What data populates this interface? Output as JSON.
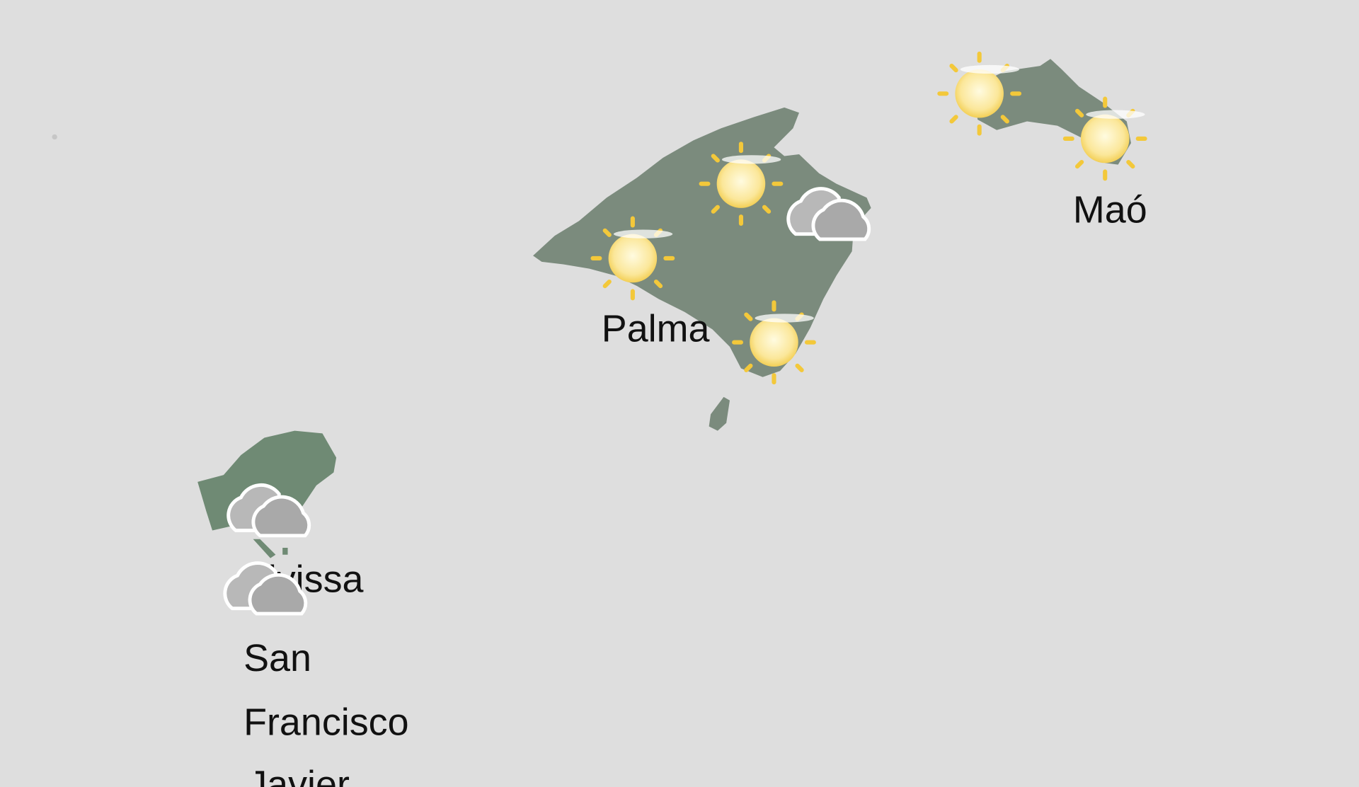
{
  "map": {
    "region": "Illes Balears",
    "colors": {
      "sea": "#dedede",
      "land": "#7b8b7d",
      "sun": "#f3c83a",
      "cloud": "#a9a9a9"
    },
    "places": [
      {
        "name": "Palma",
        "icon": "sun-icon"
      },
      {
        "name": "Maó",
        "icon": "sun-icon"
      },
      {
        "name": "Eivissa",
        "icon": "cloud-icon"
      },
      {
        "name": "San",
        "line2": "Francisco",
        "line3": "Javier",
        "icon": "cloud-icon"
      }
    ],
    "weather_icons": [
      "sun",
      "sun",
      "sun",
      "cloud",
      "sun",
      "sun",
      "cloud",
      "cloud"
    ]
  }
}
